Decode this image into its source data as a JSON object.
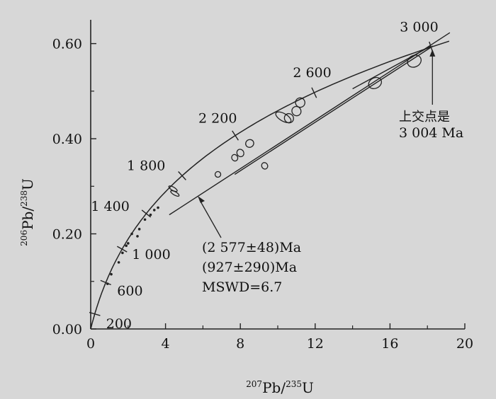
{
  "chart_data": {
    "type": "scatter",
    "title": "",
    "xlabel": {
      "sup": "207",
      "base": "Pb/",
      "sup2": "235",
      "base2": "U"
    },
    "ylabel": {
      "sup": "206",
      "base": "Pb/",
      "sup2": "238",
      "base2": "U"
    },
    "xlim": [
      0,
      20
    ],
    "ylim": [
      0,
      0.65
    ],
    "grid": false,
    "x_ticks": [
      0,
      4,
      8,
      12,
      16,
      20
    ],
    "x_tick_labels": [
      "0",
      "4",
      "8",
      "12",
      "16",
      "20"
    ],
    "y_ticks": [
      0,
      0.2,
      0.4,
      0.6
    ],
    "y_tick_labels": [
      "0.00",
      "0.20",
      "0.40",
      "0.60"
    ],
    "concordia_ages_ma": [
      200,
      600,
      1000,
      1400,
      1800,
      2200,
      2600,
      3000
    ],
    "concordia_age_labels": [
      "200",
      "600",
      "1 000",
      "1 400",
      "1 800",
      "2 200",
      "2 600",
      "3 000"
    ],
    "discordia_lines": [
      {
        "x": [
          4.2,
          19.2
        ],
        "y": [
          0.24,
          0.623
        ]
      },
      {
        "x": [
          7.7,
          18.3
        ],
        "y": [
          0.325,
          0.595
        ]
      },
      {
        "x": [
          14.0,
          18.2
        ],
        "y": [
          0.505,
          0.595
        ]
      }
    ],
    "ellipses": [
      {
        "x": 17.3,
        "y": 0.563,
        "a": 0.38,
        "b": 0.012,
        "rot": -28
      },
      {
        "x": 15.2,
        "y": 0.517,
        "a": 0.36,
        "b": 0.011,
        "rot": -28
      },
      {
        "x": 11.2,
        "y": 0.476,
        "a": 0.25,
        "b": 0.01,
        "rot": -35
      },
      {
        "x": 11.0,
        "y": 0.458,
        "a": 0.24,
        "b": 0.01,
        "rot": -35
      },
      {
        "x": 10.6,
        "y": 0.443,
        "a": 0.24,
        "b": 0.01,
        "rot": -35
      },
      {
        "x": 10.3,
        "y": 0.445,
        "a": 0.2,
        "b": 0.018,
        "rot": -60
      },
      {
        "x": 8.5,
        "y": 0.39,
        "a": 0.22,
        "b": 0.008,
        "rot": -30
      },
      {
        "x": 8.0,
        "y": 0.37,
        "a": 0.18,
        "b": 0.008,
        "rot": -30
      },
      {
        "x": 7.7,
        "y": 0.36,
        "a": 0.16,
        "b": 0.007,
        "rot": -30
      },
      {
        "x": 9.3,
        "y": 0.343,
        "a": 0.16,
        "b": 0.007,
        "rot": -30
      },
      {
        "x": 6.8,
        "y": 0.325,
        "a": 0.15,
        "b": 0.006,
        "rot": -30
      },
      {
        "x": 4.5,
        "y": 0.285,
        "a": 0.09,
        "b": 0.01,
        "rot": -60
      },
      {
        "x": 4.4,
        "y": 0.295,
        "a": 0.09,
        "b": 0.01,
        "rot": -60
      }
    ],
    "points": {
      "x": [
        0.9,
        1.1,
        1.5,
        1.7,
        1.9,
        2.2,
        2.6,
        2.9,
        3.2,
        3.4,
        3.6,
        2.5,
        2.0
      ],
      "y": [
        0.095,
        0.115,
        0.14,
        0.16,
        0.175,
        0.2,
        0.21,
        0.23,
        0.24,
        0.25,
        0.255,
        0.195,
        0.18
      ]
    },
    "annotations": {
      "upper_intercept_line1": "上交点是",
      "upper_intercept_line2": "3 004 Ma",
      "intercept_upper": "(2 577±48)Ma",
      "intercept_lower": "(927±290)Ma",
      "mswd": "MSWD=6.7"
    }
  }
}
